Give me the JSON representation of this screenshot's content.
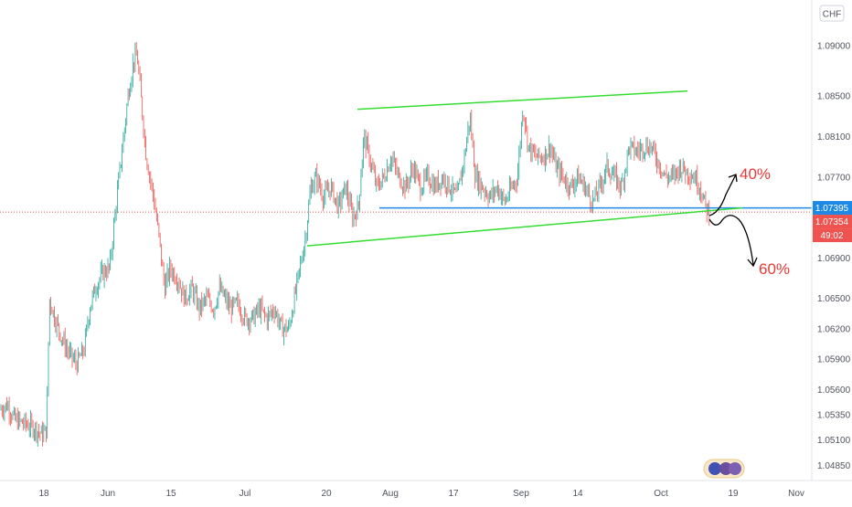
{
  "chart_data": {
    "type": "candlestick",
    "currency_badge": "CHF",
    "y_ticks": [
      "1.09000",
      "1.08500",
      "1.08100",
      "1.07700",
      "1.07300",
      "1.06900",
      "1.06500",
      "1.06200",
      "1.05900",
      "1.05600",
      "1.05350",
      "1.05100",
      "1.04850"
    ],
    "y_tick_values": [
      1.09,
      1.085,
      1.081,
      1.077,
      1.073,
      1.069,
      1.065,
      1.062,
      1.059,
      1.056,
      1.0535,
      1.051,
      1.0485
    ],
    "ylim": [
      1.047,
      1.0945
    ],
    "x_ticks": [
      "18",
      "Jun",
      "15",
      "Jul",
      "20",
      "Aug",
      "17",
      "Sep",
      "14",
      "Oct",
      "19",
      "Nov"
    ],
    "price_labels": [
      {
        "text": "1.07395",
        "value": 1.07395,
        "color": "#1e88e5"
      },
      {
        "text": "1.07354",
        "value": 1.07354,
        "color": "#ef5350"
      },
      {
        "text": "49:02",
        "color": "#ef5350"
      }
    ],
    "horizontal_line": {
      "value": 1.07395,
      "color": "#1e88e5"
    },
    "current_price_line": {
      "value": 1.07354,
      "color": "#ef5350"
    },
    "trendlines": {
      "upper": {
        "color": "#33dd33",
        "from": {
          "date": "Jul 27",
          "value": 1.0837
        },
        "to": {
          "date": "Oct 14",
          "value": 1.0855
        }
      },
      "lower": {
        "color": "#33dd33",
        "from": {
          "date": "Jul 13",
          "value": 1.0702
        },
        "to": {
          "date": "Oct 16",
          "value": 1.07395
        }
      }
    },
    "annotations": [
      {
        "text": "40%",
        "color": "#e53935"
      },
      {
        "text": "60%",
        "color": "#e53935"
      }
    ],
    "series_colors": {
      "up": "#26a69a",
      "down": "#ef5350"
    },
    "price_path": [
      [
        0,
        1.054
      ],
      [
        8,
        1.0545
      ],
      [
        16,
        1.053
      ],
      [
        22,
        1.0528
      ],
      [
        30,
        1.0525
      ],
      [
        38,
        1.0522
      ],
      [
        46,
        1.0515
      ],
      [
        51,
        1.052
      ],
      [
        54,
        1.065
      ],
      [
        60,
        1.063
      ],
      [
        68,
        1.061
      ],
      [
        76,
        1.0595
      ],
      [
        84,
        1.0585
      ],
      [
        92,
        1.06
      ],
      [
        98,
        1.064
      ],
      [
        104,
        1.066
      ],
      [
        112,
        1.0675
      ],
      [
        120,
        1.068
      ],
      [
        126,
        1.0735
      ],
      [
        134,
        1.08
      ],
      [
        140,
        1.085
      ],
      [
        146,
        1.0885
      ],
      [
        150,
        1.089
      ],
      [
        154,
        1.085
      ],
      [
        160,
        1.079
      ],
      [
        168,
        1.075
      ],
      [
        174,
        1.071
      ],
      [
        180,
        1.066
      ],
      [
        186,
        1.068
      ],
      [
        194,
        1.067
      ],
      [
        202,
        1.065
      ],
      [
        210,
        1.066
      ],
      [
        218,
        1.064
      ],
      [
        226,
        1.065
      ],
      [
        234,
        1.064
      ],
      [
        240,
        1.066
      ],
      [
        246,
        1.065
      ],
      [
        252,
        1.064
      ],
      [
        260,
        1.0645
      ],
      [
        268,
        1.063
      ],
      [
        276,
        1.063
      ],
      [
        284,
        1.064
      ],
      [
        292,
        1.063
      ],
      [
        300,
        1.064
      ],
      [
        308,
        1.062
      ],
      [
        316,
        1.062
      ],
      [
        322,
        1.065
      ],
      [
        328,
        1.068
      ],
      [
        334,
        1.071
      ],
      [
        340,
        1.076
      ],
      [
        346,
        1.077
      ],
      [
        354,
        1.075
      ],
      [
        362,
        1.076
      ],
      [
        370,
        1.074
      ],
      [
        378,
        1.076
      ],
      [
        386,
        1.073
      ],
      [
        392,
        1.074
      ],
      [
        398,
        1.081
      ],
      [
        404,
        1.079
      ],
      [
        412,
        1.076
      ],
      [
        420,
        1.077
      ],
      [
        428,
        1.079
      ],
      [
        436,
        1.077
      ],
      [
        444,
        1.076
      ],
      [
        452,
        1.078
      ],
      [
        460,
        1.076
      ],
      [
        468,
        1.077
      ],
      [
        476,
        1.076
      ],
      [
        484,
        1.077
      ],
      [
        492,
        1.076
      ],
      [
        500,
        1.075
      ],
      [
        508,
        1.079
      ],
      [
        514,
        1.083
      ],
      [
        520,
        1.077
      ],
      [
        528,
        1.076
      ],
      [
        536,
        1.075
      ],
      [
        544,
        1.076
      ],
      [
        552,
        1.0745
      ],
      [
        560,
        1.076
      ],
      [
        566,
        1.077
      ],
      [
        572,
        1.084
      ],
      [
        578,
        1.08
      ],
      [
        586,
        1.079
      ],
      [
        594,
        1.079
      ],
      [
        602,
        1.08
      ],
      [
        608,
        1.078
      ],
      [
        616,
        1.077
      ],
      [
        624,
        1.076
      ],
      [
        632,
        1.077
      ],
      [
        640,
        1.076
      ],
      [
        648,
        1.0745
      ],
      [
        656,
        1.076
      ],
      [
        664,
        1.078
      ],
      [
        672,
        1.077
      ],
      [
        680,
        1.076
      ],
      [
        688,
        1.08
      ],
      [
        696,
        1.0795
      ],
      [
        704,
        1.08
      ],
      [
        712,
        1.08
      ],
      [
        720,
        1.0785
      ],
      [
        728,
        1.077
      ],
      [
        736,
        1.077
      ],
      [
        744,
        1.078
      ],
      [
        752,
        1.0775
      ],
      [
        760,
        1.077
      ],
      [
        766,
        1.076
      ],
      [
        772,
        1.074
      ],
      [
        776,
        1.0735
      ]
    ]
  }
}
